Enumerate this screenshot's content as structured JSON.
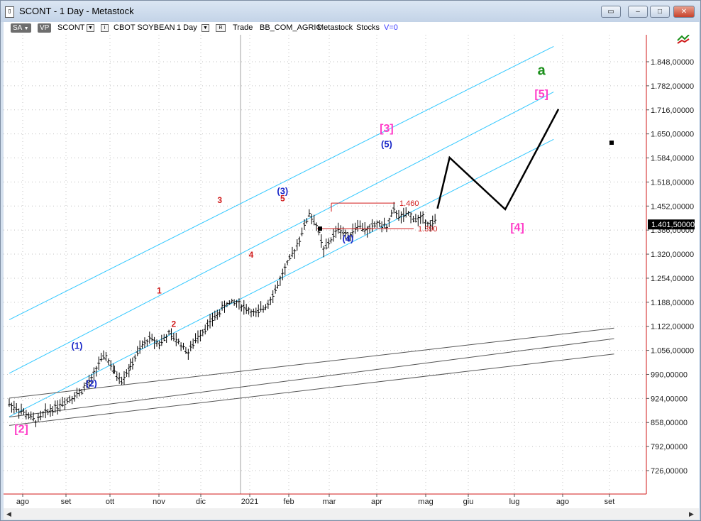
{
  "window": {
    "title": "SCONT - 1 Day - Metastock",
    "app_icon": "document-icon"
  },
  "toolbar": {
    "sa_label": "SA",
    "vp_label": "VP",
    "symbol": "SCONT",
    "symbol_name": "CBOT SOYBEAN",
    "periodicity": "1 Day",
    "trade_label": "Trade",
    "category": "BB_COM_AGRIC",
    "source": "Metastock",
    "type": "Stocks",
    "volume_label": "V=0",
    "dropdown_glyph": "▼",
    "checkbox_glyph": "I",
    "r_label": "R"
  },
  "price_axis": {
    "labels": [
      "1.848,00000",
      "1.782,00000",
      "1.716,00000",
      "1.650,00000",
      "1.584,00000",
      "1.518,00000",
      "1.452,00000",
      "1.386,00000",
      "1.320,00000",
      "1.254,00000",
      "1.188,00000",
      "1.122,00000",
      "1.056,00000",
      "990,00000",
      "924,00000",
      "858,00000",
      "792,00000",
      "726,00000"
    ],
    "values": [
      1848,
      1782,
      1716,
      1650,
      1584,
      1518,
      1452,
      1386,
      1320,
      1254,
      1188,
      1122,
      1056,
      990,
      924,
      858,
      792,
      726
    ],
    "current_price": "1.401,50000",
    "current_value": 1401.5
  },
  "time_axis": {
    "labels": [
      "ago",
      "set",
      "ott",
      "nov",
      "dic",
      "2021",
      "feb",
      "mar",
      "apr",
      "mag",
      "giu",
      "lug",
      "ago",
      "set"
    ]
  },
  "chart_data": {
    "type": "ohlc",
    "series": [
      {
        "name": "SCONT",
        "close": [
          [
            0,
            909
          ],
          [
            12,
            885
          ],
          [
            22,
            862
          ],
          [
            30,
            885
          ],
          [
            38,
            900
          ],
          [
            48,
            920
          ],
          [
            58,
            940
          ],
          [
            68,
            975
          ],
          [
            74,
            1022
          ],
          [
            80,
            1040
          ],
          [
            87,
            995
          ],
          [
            93,
            975
          ],
          [
            100,
            1010
          ],
          [
            108,
            1060
          ],
          [
            116,
            1090
          ],
          [
            124,
            1075
          ],
          [
            132,
            1100
          ],
          [
            140,
            1080
          ],
          [
            148,
            1050
          ],
          [
            156,
            1095
          ],
          [
            164,
            1125
          ],
          [
            172,
            1155
          ],
          [
            180,
            1185
          ],
          [
            188,
            1188
          ],
          [
            196,
            1170
          ],
          [
            204,
            1155
          ],
          [
            212,
            1178
          ],
          [
            220,
            1220
          ],
          [
            228,
            1280
          ],
          [
            236,
            1330
          ],
          [
            242,
            1380
          ],
          [
            248,
            1430
          ],
          [
            254,
            1400
          ],
          [
            260,
            1330
          ],
          [
            266,
            1360
          ],
          [
            272,
            1390
          ],
          [
            280,
            1370
          ],
          [
            288,
            1400
          ],
          [
            296,
            1385
          ],
          [
            304,
            1405
          ],
          [
            312,
            1395
          ],
          [
            318,
            1440
          ],
          [
            324,
            1420
          ],
          [
            330,
            1430
          ],
          [
            336,
            1415
          ],
          [
            342,
            1420
          ],
          [
            348,
            1400
          ],
          [
            354,
            1415
          ]
        ]
      }
    ],
    "projection": [
      [
        354,
        1445
      ],
      [
        364,
        1585
      ],
      [
        410,
        1443
      ],
      [
        454,
        1718
      ]
    ],
    "levels": [
      {
        "label": "1.460",
        "value": 1460
      },
      {
        "label": "1.390",
        "value": 1390
      }
    ],
    "channels": [
      {
        "color": "#32c8ff",
        "from": [
          0,
          1140
        ],
        "to": [
          450,
          1890
        ]
      },
      {
        "color": "#32c8ff",
        "from": [
          0,
          993
        ],
        "to": [
          450,
          1765
        ]
      },
      {
        "color": "#32c8ff",
        "from": [
          0,
          874
        ],
        "to": [
          450,
          1635
        ]
      },
      {
        "color": "#555555",
        "from": [
          0,
          925
        ],
        "to": [
          500,
          1117
        ]
      },
      {
        "color": "#555555",
        "from": [
          0,
          873
        ],
        "to": [
          500,
          1088
        ]
      },
      {
        "color": "#555555",
        "from": [
          0,
          850
        ],
        "to": [
          500,
          1046
        ]
      }
    ],
    "wave_labels": [
      {
        "text": "a",
        "color": "#1a8f1a",
        "x": 440,
        "y": 1812
      },
      {
        "text": "[5]",
        "color": "#ff3cc8",
        "x": 440,
        "y": 1750
      },
      {
        "text": "[3]",
        "color": "#ff3cc8",
        "x": 312,
        "y": 1655
      },
      {
        "text": "(5)",
        "color": "#1a28c8",
        "x": 312,
        "y": 1613
      },
      {
        "text": "[4]",
        "color": "#ff3cc8",
        "x": 420,
        "y": 1383
      },
      {
        "text": "(3)",
        "color": "#1a28c8",
        "x": 226,
        "y": 1485
      },
      {
        "text": "5",
        "color": "#d01a1a",
        "x": 226,
        "y": 1465
      },
      {
        "text": "(4)",
        "color": "#1a28c8",
        "x": 280,
        "y": 1354
      },
      {
        "text": "3",
        "color": "#d01a1a",
        "x": 174,
        "y": 1460
      },
      {
        "text": "4",
        "color": "#d01a1a",
        "x": 200,
        "y": 1310
      },
      {
        "text": "1",
        "color": "#d01a1a",
        "x": 124,
        "y": 1212
      },
      {
        "text": "2",
        "color": "#d01a1a",
        "x": 136,
        "y": 1120
      },
      {
        "text": "(1)",
        "color": "#1a28c8",
        "x": 56,
        "y": 1060
      },
      {
        "text": "(2)",
        "color": "#1a28c8",
        "x": 68,
        "y": 957
      },
      {
        "text": "[2]",
        "color": "#ff3cc8",
        "x": 10,
        "y": 830
      }
    ],
    "ylim": [
      660,
      1900
    ],
    "xlim": [
      0,
      500
    ]
  },
  "colors": {
    "price_box_bg": "#000000",
    "level_color": "#d01a1a",
    "projection_color": "#000000"
  }
}
